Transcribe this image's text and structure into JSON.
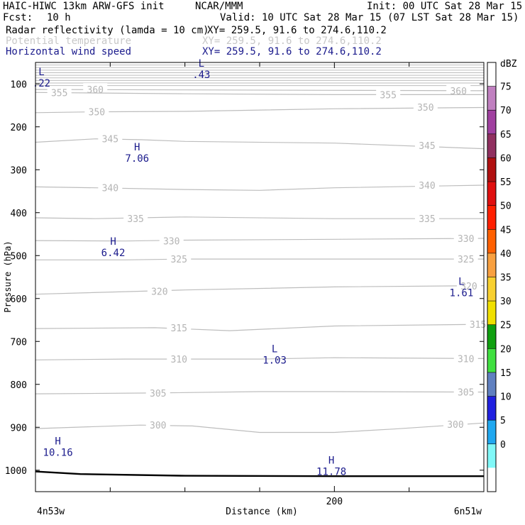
{
  "header": {
    "model": "HAIC-HIWC 13km ARW-GFS init",
    "org": "NCAR/MMM",
    "init": "Init: 00 UTC Sat 28 Mar 15",
    "fcst_label": "Fcst:",
    "fcst_value": "10 h",
    "valid": "Valid: 10 UTC Sat 28 Mar 15 (07 LST Sat 28 Mar 15)",
    "fields": [
      {
        "name": "Radar reflectivity (lamda = 10 cm)",
        "xy": "XY= 259.5, 91.6 to 274.6,110.2",
        "color": "#000000"
      },
      {
        "name": "Potential temperature",
        "xy": "XY= 259.5, 91.6 to 274.6,110.2",
        "color": "#c8c8c8"
      },
      {
        "name": "Horizontal wind speed",
        "xy": "XY= 259.5, 91.6 to 274.6,110.2",
        "color": "#1a1a8c"
      }
    ]
  },
  "chart_data": {
    "type": "contour cross-section",
    "ylabel": "Pressure (hPa)",
    "xlabel": "Distance (km)",
    "y_ticks": [
      100,
      200,
      300,
      400,
      500,
      600,
      700,
      800,
      900,
      1000
    ],
    "y_range": [
      50,
      1050
    ],
    "x_range": [
      0,
      300
    ],
    "x_tick_labels": [
      {
        "x": 200,
        "label": "200"
      }
    ],
    "x_minor_ticks": [
      50,
      100,
      150,
      250,
      300
    ],
    "start_label": "4n53w",
    "end_label": "6n51w",
    "colorbar": {
      "unit": "dBZ",
      "levels": [
        "75",
        "70",
        "65",
        "60",
        "55",
        "50",
        "45",
        "40",
        "35",
        "30",
        "25",
        "20",
        "15",
        "10",
        "5",
        "0"
      ],
      "colors": [
        "#ffffff",
        "#c080c0",
        "#a040a0",
        "#903060",
        "#b01010",
        "#e01010",
        "#ff2000",
        "#ff6000",
        "#f8a040",
        "#f8d030",
        "#f0e000",
        "#10a010",
        "#40e040",
        "#6080c0",
        "#2020e0",
        "#20a8f0",
        "#80f8f8",
        "#ffffff"
      ]
    },
    "theta_contours": [
      {
        "label": "360",
        "pts": [
          [
            0,
            113
          ],
          [
            100,
            114
          ],
          [
            200,
            115
          ],
          [
            300,
            116
          ]
        ],
        "labels_at": [
          [
            40,
            113
          ],
          [
            283,
            116
          ]
        ]
      },
      {
        "label": "355",
        "pts": [
          [
            0,
            120
          ],
          [
            100,
            123
          ],
          [
            200,
            125
          ],
          [
            300,
            125
          ]
        ],
        "labels_at": [
          [
            16,
            120
          ],
          [
            236,
            125
          ]
        ]
      },
      {
        "label": "350",
        "pts": [
          [
            0,
            167
          ],
          [
            40,
            165
          ],
          [
            100,
            164
          ],
          [
            200,
            158
          ],
          [
            300,
            155
          ]
        ],
        "labels_at": [
          [
            41,
            165
          ],
          [
            261,
            154
          ]
        ]
      },
      {
        "label": "345",
        "pts": [
          [
            0,
            236
          ],
          [
            40,
            228
          ],
          [
            70,
            230
          ],
          [
            100,
            234
          ],
          [
            200,
            238
          ],
          [
            300,
            251
          ]
        ],
        "labels_at": [
          [
            50,
            228
          ],
          [
            262,
            243
          ]
        ]
      },
      {
        "label": "340",
        "pts": [
          [
            0,
            340
          ],
          [
            40,
            342
          ],
          [
            100,
            346
          ],
          [
            150,
            348
          ],
          [
            200,
            342
          ],
          [
            300,
            336
          ]
        ],
        "labels_at": [
          [
            50,
            342
          ],
          [
            262,
            336
          ]
        ]
      },
      {
        "label": "335",
        "pts": [
          [
            0,
            412
          ],
          [
            40,
            414
          ],
          [
            100,
            410
          ],
          [
            200,
            414
          ],
          [
            300,
            414
          ]
        ],
        "labels_at": [
          [
            67,
            414
          ],
          [
            262,
            414
          ]
        ]
      },
      {
        "label": "330",
        "pts": [
          [
            0,
            465
          ],
          [
            60,
            466
          ],
          [
            100,
            464
          ],
          [
            200,
            462
          ],
          [
            300,
            460
          ]
        ],
        "labels_at": [
          [
            91,
            466
          ],
          [
            288,
            460
          ]
        ]
      },
      {
        "label": "325",
        "pts": [
          [
            0,
            510
          ],
          [
            60,
            510
          ],
          [
            100,
            508
          ],
          [
            200,
            508
          ],
          [
            300,
            508
          ]
        ],
        "labels_at": [
          [
            96,
            508
          ],
          [
            288,
            508
          ]
        ]
      },
      {
        "label": "320",
        "pts": [
          [
            0,
            590
          ],
          [
            60,
            584
          ],
          [
            100,
            580
          ],
          [
            200,
            573
          ],
          [
            300,
            570
          ]
        ],
        "labels_at": [
          [
            83,
            583
          ],
          [
            290,
            571
          ]
        ]
      },
      {
        "label": "315",
        "pts": [
          [
            0,
            670
          ],
          [
            80,
            668
          ],
          [
            130,
            675
          ],
          [
            200,
            664
          ],
          [
            300,
            660
          ]
        ],
        "labels_at": [
          [
            96,
            668
          ],
          [
            296,
            660
          ]
        ]
      },
      {
        "label": "310",
        "pts": [
          [
            0,
            743
          ],
          [
            60,
            741
          ],
          [
            150,
            741
          ],
          [
            200,
            738
          ],
          [
            300,
            740
          ]
        ],
        "labels_at": [
          [
            96,
            741
          ],
          [
            288,
            740
          ]
        ]
      },
      {
        "label": "305",
        "pts": [
          [
            0,
            822
          ],
          [
            80,
            820
          ],
          [
            150,
            817
          ],
          [
            200,
            817
          ],
          [
            300,
            818
          ]
        ],
        "labels_at": [
          [
            82,
            820
          ],
          [
            288,
            818
          ]
        ]
      },
      {
        "label": "300",
        "pts": [
          [
            0,
            903
          ],
          [
            70,
            895
          ],
          [
            105,
            897
          ],
          [
            150,
            912
          ],
          [
            200,
            912
          ],
          [
            240,
            904
          ],
          [
            300,
            890
          ]
        ],
        "labels_at": [
          [
            82,
            895
          ],
          [
            281,
            893
          ]
        ]
      }
    ],
    "theta_stratosphere_lines": [
      56,
      62,
      68,
      74,
      80,
      86,
      92,
      98,
      104
    ],
    "wind_extrema": [
      {
        "type": "L",
        "value": ".22",
        "x": 4,
        "p": 80
      },
      {
        "type": "L",
        "value": ".43",
        "x": 111,
        "p": 60
      },
      {
        "type": "H",
        "value": "7.06",
        "x": 68,
        "p": 255
      },
      {
        "type": "H",
        "value": "6.42",
        "x": 52,
        "p": 475
      },
      {
        "type": "L",
        "value": "1.61",
        "x": 285,
        "p": 568
      },
      {
        "type": "L",
        "value": "1.03",
        "x": 160,
        "p": 725
      },
      {
        "type": "H",
        "value": "10.16",
        "x": 15,
        "p": 940
      },
      {
        "type": "H",
        "value": "11.78",
        "x": 198,
        "p": 985
      }
    ],
    "terrain": [
      [
        0,
        1003
      ],
      [
        30,
        1009
      ],
      [
        100,
        1013
      ],
      [
        200,
        1014
      ],
      [
        300,
        1014
      ]
    ]
  }
}
